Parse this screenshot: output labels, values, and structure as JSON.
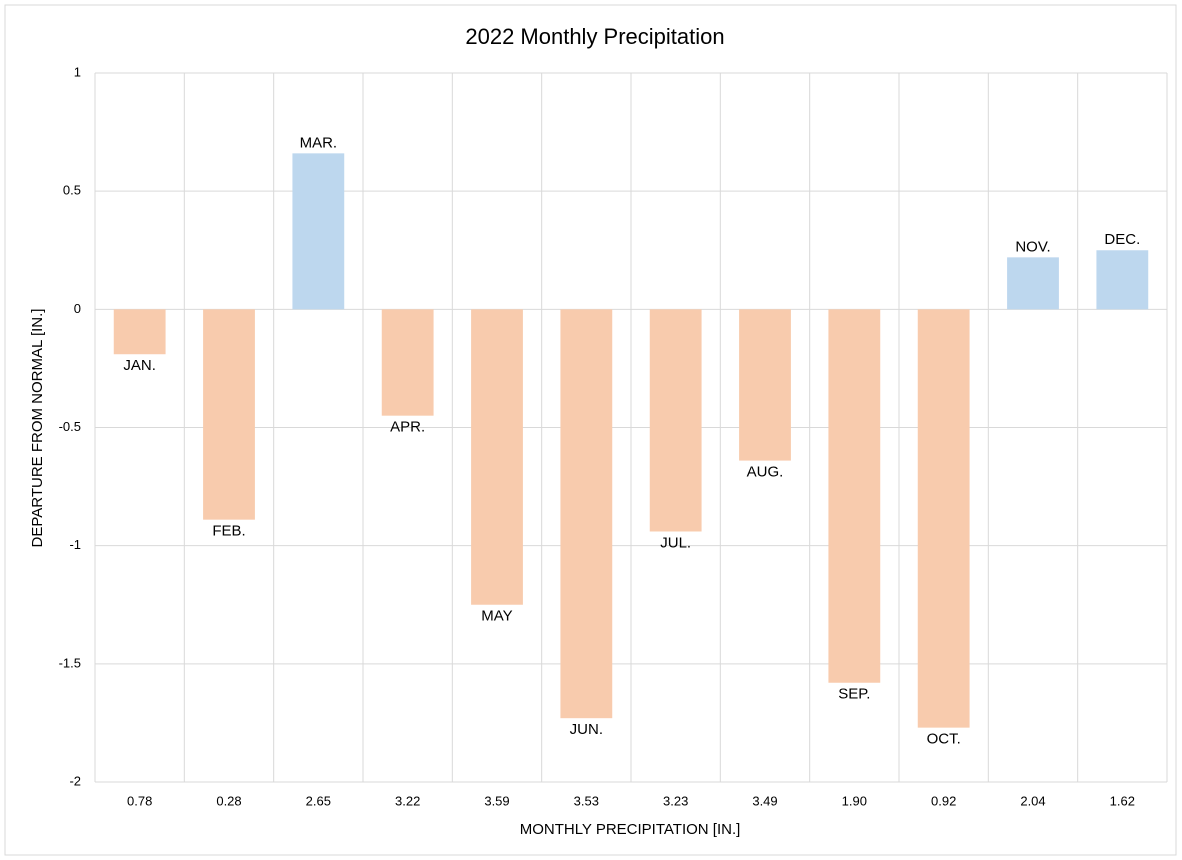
{
  "chart_data": {
    "type": "bar",
    "title": "2022 Monthly  Precipitation",
    "x_label": "MONTHLY PRECIPITATION [IN.]",
    "y_label": "DEPARTURE  FROM NORMAL [IN.]",
    "categories": [
      "0.78",
      "0.28",
      "2.65",
      "3.22",
      "3.59",
      "3.53",
      "3.23",
      "3.49",
      "1.90",
      "0.92",
      "2.04",
      "1.62"
    ],
    "values": [
      -0.19,
      -0.89,
      0.66,
      -0.45,
      -1.25,
      -1.73,
      -0.94,
      -0.64,
      -1.58,
      -1.77,
      0.22,
      0.25
    ],
    "data_labels": [
      "JAN.",
      "FEB.",
      "MAR.",
      "APR.",
      "MAY",
      "JUN.",
      "JUL.",
      "AUG.",
      "SEP.",
      "OCT.",
      "NOV.",
      "DEC."
    ],
    "positive_color": "#bdd7ee",
    "negative_color": "#f8cbad",
    "ylim": [
      -2,
      1
    ],
    "yticks": [
      1,
      0.5,
      0,
      -0.5,
      -1,
      -1.5,
      -2
    ],
    "grid": true
  }
}
